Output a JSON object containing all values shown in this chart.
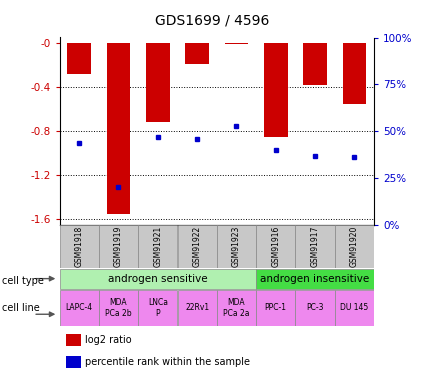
{
  "title": "GDS1699 / 4596",
  "samples": [
    "GSM91918",
    "GSM91919",
    "GSM91921",
    "GSM91922",
    "GSM91923",
    "GSM91916",
    "GSM91917",
    "GSM91920"
  ],
  "log2_ratio": [
    -0.28,
    -1.55,
    -0.72,
    -0.19,
    -0.01,
    -0.85,
    -0.38,
    -0.55
  ],
  "percentile_rank": [
    0.44,
    0.2,
    0.47,
    0.46,
    0.53,
    0.4,
    0.37,
    0.36
  ],
  "cell_type_groups": [
    {
      "label": "androgen sensitive",
      "start": 0,
      "end": 5,
      "color": "#B0F0B0"
    },
    {
      "label": "androgen insensitive",
      "start": 5,
      "end": 8,
      "color": "#44DD44"
    }
  ],
  "cell_lines": [
    "LAPC-4",
    "MDA\nPCa 2b",
    "LNCa\nP",
    "22Rv1",
    "MDA\nPCa 2a",
    "PPC-1",
    "PC-3",
    "DU 145"
  ],
  "cell_line_color": "#EE88EE",
  "bar_color": "#CC0000",
  "dot_color": "#0000CC",
  "ylim_left": [
    -1.65,
    0.05
  ],
  "yticks_left": [
    0.0,
    -0.4,
    -0.8,
    -1.2,
    -1.6
  ],
  "ytick_labels_left": [
    "-0",
    "-0.4",
    "-0.8",
    "-1.2",
    "-1.6"
  ],
  "ytick_labels_right": [
    "0%",
    "25%",
    "50%",
    "75%",
    "100%"
  ],
  "legend_log2": "log2 ratio",
  "legend_pct": "percentile rank within the sample",
  "cell_type_label": "cell type",
  "cell_line_label": "cell line",
  "bar_color_hex": "#CC0000",
  "dot_color_hex": "#0000CC",
  "left_tick_color": "#CC0000",
  "right_tick_color": "#0000CC",
  "grid_color": "#000000",
  "sample_box_color": "#C8C8C8"
}
